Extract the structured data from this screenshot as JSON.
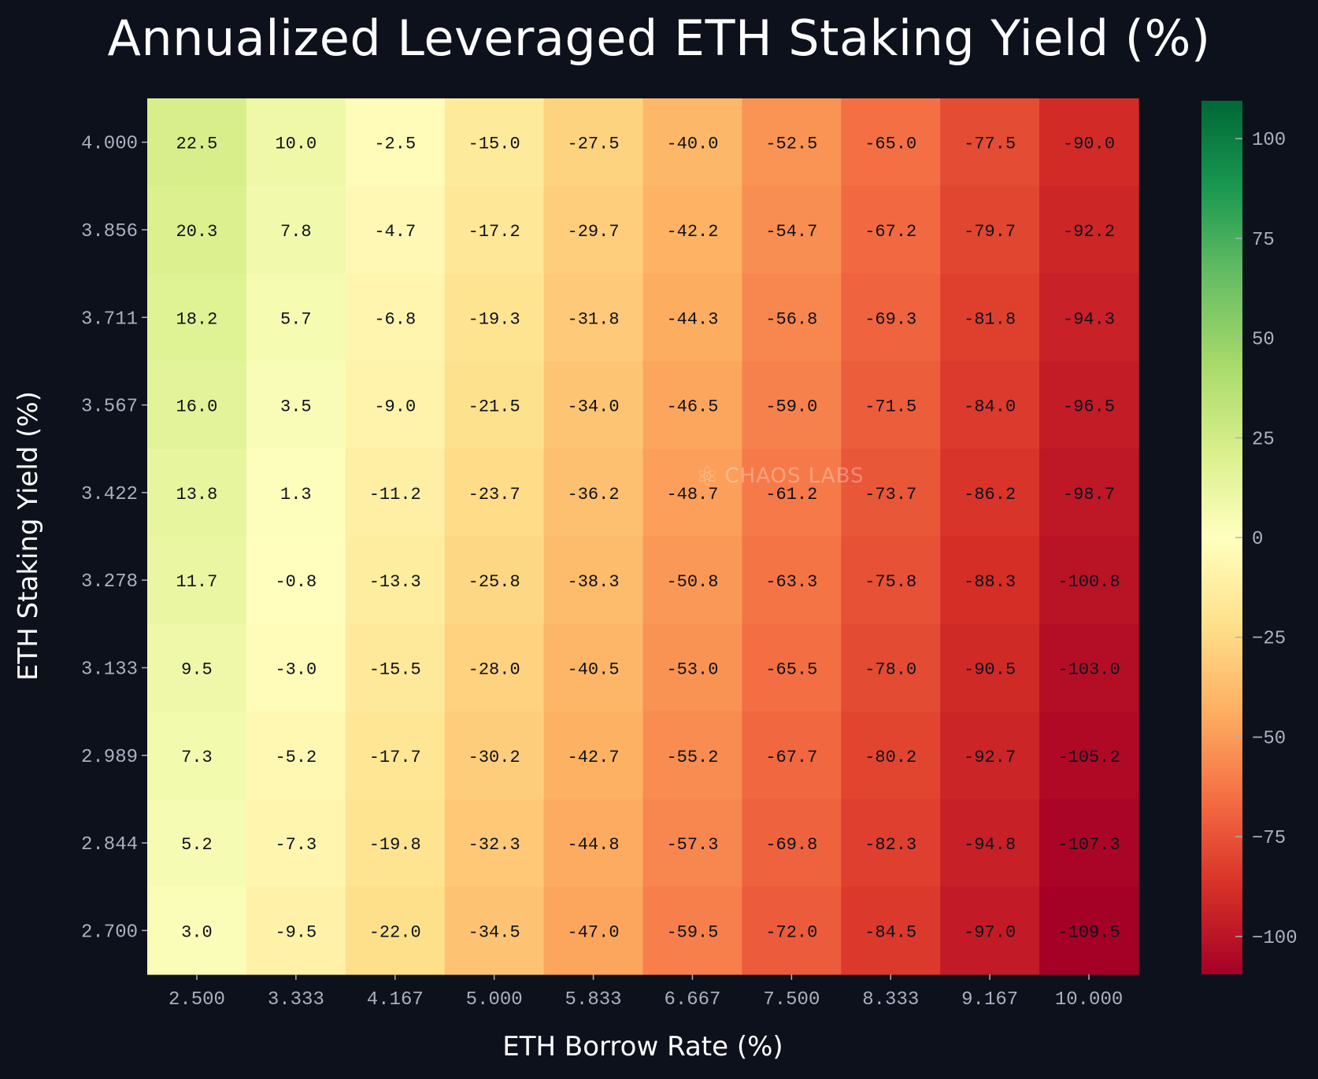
{
  "chart_data": {
    "type": "heatmap",
    "title": "Annualized Leveraged ETH Staking Yield (%)",
    "xlabel": "ETH Borrow Rate (%)",
    "ylabel": "ETH Staking Yield (%)",
    "x": [
      "2.500",
      "3.333",
      "4.167",
      "5.000",
      "5.833",
      "6.667",
      "7.500",
      "8.333",
      "9.167",
      "10.000"
    ],
    "y": [
      "4.000",
      "3.856",
      "3.711",
      "3.567",
      "3.422",
      "3.278",
      "3.133",
      "2.989",
      "2.844",
      "2.700"
    ],
    "values": [
      [
        22.5,
        10.0,
        -2.5,
        -15.0,
        -27.5,
        -40.0,
        -52.5,
        -65.0,
        -77.5,
        -90.0
      ],
      [
        20.3,
        7.8,
        -4.7,
        -17.2,
        -29.7,
        -42.2,
        -54.7,
        -67.2,
        -79.7,
        -92.2
      ],
      [
        18.2,
        5.7,
        -6.8,
        -19.3,
        -31.8,
        -44.3,
        -56.8,
        -69.3,
        -81.8,
        -94.3
      ],
      [
        16.0,
        3.5,
        -9.0,
        -21.5,
        -34.0,
        -46.5,
        -59.0,
        -71.5,
        -84.0,
        -96.5
      ],
      [
        13.8,
        1.3,
        -11.2,
        -23.7,
        -36.2,
        -48.7,
        -61.2,
        -73.7,
        -86.2,
        -98.7
      ],
      [
        11.7,
        -0.8,
        -13.3,
        -25.8,
        -38.3,
        -50.8,
        -63.3,
        -75.8,
        -88.3,
        -100.8
      ],
      [
        9.5,
        -3.0,
        -15.5,
        -28.0,
        -40.5,
        -53.0,
        -65.5,
        -78.0,
        -90.5,
        -103.0
      ],
      [
        7.3,
        -5.2,
        -17.7,
        -30.2,
        -42.7,
        -55.2,
        -67.7,
        -80.2,
        -92.7,
        -105.2
      ],
      [
        5.2,
        -7.3,
        -19.8,
        -32.3,
        -44.8,
        -57.3,
        -69.8,
        -82.3,
        -94.8,
        -107.3
      ],
      [
        3.0,
        -9.5,
        -22.0,
        -34.5,
        -47.0,
        -59.5,
        -72.0,
        -84.5,
        -97.0,
        -109.5
      ]
    ],
    "colormap": "RdYlGn",
    "vrange": [
      -109.5,
      109.5
    ],
    "colorbar_ticks": [
      100,
      75,
      50,
      25,
      0,
      -25,
      -50,
      -75,
      -100
    ],
    "colorbar_tick_labels": [
      "100",
      "75",
      "50",
      "25",
      "0",
      "−25",
      "−50",
      "−75",
      "−100"
    ]
  },
  "watermark": "CHAOS LABS",
  "colors": {
    "background": "#0d111c",
    "text": "#ffffff",
    "tick": "#a9b0c0"
  }
}
